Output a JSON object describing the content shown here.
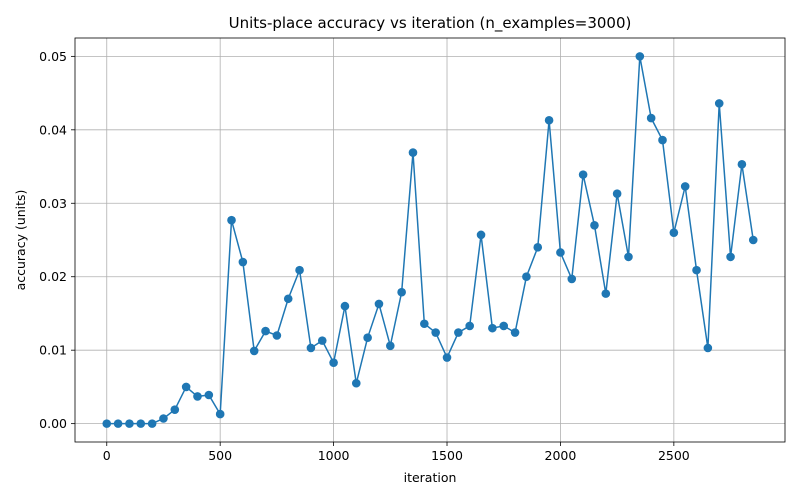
{
  "chart_data": {
    "type": "line",
    "title": "Units-place accuracy vs iteration (n_examples=3000)",
    "xlabel": "iteration",
    "ylabel": "accuracy (units)",
    "xlim": [
      -140,
      2990
    ],
    "ylim": [
      -0.0025,
      0.0525
    ],
    "xticks": [
      0,
      500,
      1000,
      1500,
      2000,
      2500
    ],
    "xtick_labels": [
      "0",
      "500",
      "1000",
      "1500",
      "2000",
      "2500"
    ],
    "yticks": [
      0,
      0.01,
      0.02,
      0.03,
      0.04,
      0.05
    ],
    "ytick_labels": [
      "0.00",
      "0.01",
      "0.02",
      "0.03",
      "0.04",
      "0.05"
    ],
    "grid": true,
    "color": "#1f77b4",
    "series": [
      {
        "x": [
          0,
          50,
          100,
          150,
          200,
          250,
          300,
          350,
          400,
          450,
          500,
          550,
          600,
          650,
          700,
          750,
          800,
          850,
          900,
          950,
          1000,
          1050,
          1100,
          1150,
          1200,
          1250,
          1300,
          1350,
          1400,
          1450,
          1500,
          1550,
          1600,
          1650,
          1700,
          1750,
          1800,
          1850,
          1900,
          1950,
          2000,
          2050,
          2100,
          2150,
          2200,
          2250,
          2300,
          2350,
          2400,
          2450,
          2500,
          2550,
          2600,
          2650,
          2700,
          2750,
          2800,
          2850
        ],
        "y": [
          0.0,
          0.0,
          0.0,
          0.0,
          0.0,
          0.0007,
          0.0019,
          0.005,
          0.0037,
          0.0039,
          0.0013,
          0.0277,
          0.022,
          0.0099,
          0.0126,
          0.012,
          0.017,
          0.0209,
          0.0103,
          0.0113,
          0.0083,
          0.016,
          0.0055,
          0.0117,
          0.0163,
          0.0106,
          0.0179,
          0.0369,
          0.0136,
          0.0124,
          0.009,
          0.0124,
          0.0133,
          0.0257,
          0.013,
          0.0133,
          0.0124,
          0.02,
          0.024,
          0.0413,
          0.0233,
          0.0197,
          0.0339,
          0.027,
          0.0177,
          0.0313,
          0.0227,
          0.05,
          0.0416,
          0.0386,
          0.026,
          0.0323,
          0.0209,
          0.0103,
          0.0436,
          0.0227,
          0.0353,
          0.025
        ]
      }
    ]
  }
}
